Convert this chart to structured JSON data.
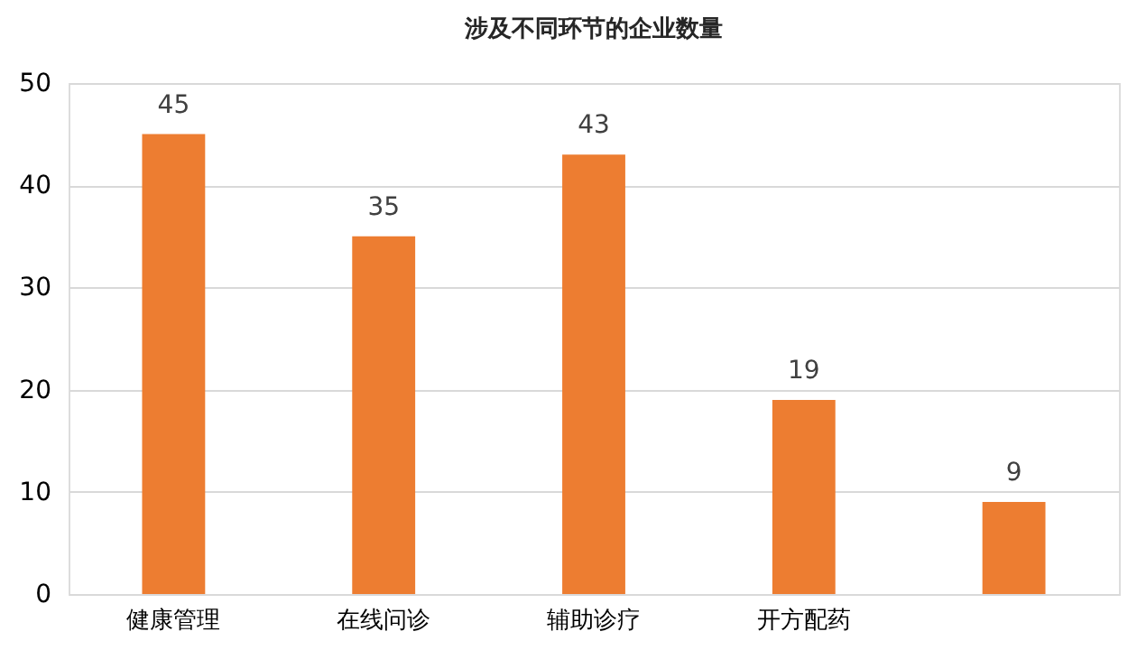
{
  "chart_data": {
    "type": "bar",
    "title": "涉及不同环节的企业数量",
    "categories": [
      "健康管理",
      "在线问诊",
      "辅助诊疗",
      "开方配药",
      null
    ],
    "values": [
      45,
      35,
      43,
      19,
      9
    ],
    "color": "#ed7d31",
    "ylim": [
      0,
      50
    ],
    "yticks": [
      0,
      10,
      20,
      30,
      40,
      50
    ],
    "grid": "y",
    "data_labels": true
  }
}
